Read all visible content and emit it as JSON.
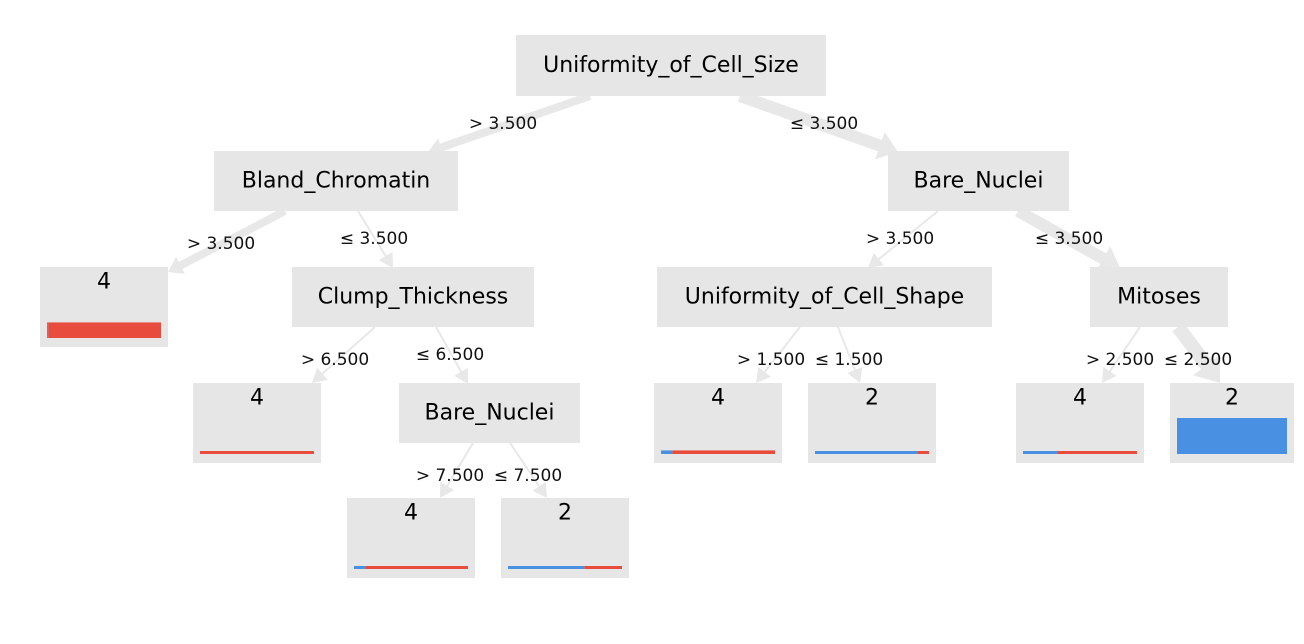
{
  "colors": {
    "class_2": "#4a90e2",
    "class_4": "#e84c3d",
    "node_bg": "#e6e6e6",
    "edge": "#e8e8e8"
  },
  "nodes": {
    "root": {
      "label": "Uniformity_of_Cell_Size"
    },
    "bland": {
      "label": "Bland_Chromatin"
    },
    "bare1": {
      "label": "Bare_Nuclei"
    },
    "clump": {
      "label": "Clump_Thickness"
    },
    "shape": {
      "label": "Uniformity_of_Cell_Shape"
    },
    "mitoses": {
      "label": "Mitoses"
    },
    "bare2": {
      "label": "Bare_Nuclei"
    }
  },
  "leaves": {
    "L1": {
      "label": "4",
      "frac_class_2": 0.01,
      "weight": 0.13
    },
    "L2": {
      "label": "4",
      "frac_class_2": 0.0,
      "weight": 0.02
    },
    "L3": {
      "label": "4",
      "frac_class_2": 0.1,
      "weight": 0.02
    },
    "L4": {
      "label": "2",
      "frac_class_2": 0.67,
      "weight": 0.02
    },
    "L5": {
      "label": "4",
      "frac_class_2": 0.1,
      "weight": 0.03
    },
    "L6": {
      "label": "2",
      "frac_class_2": 0.9,
      "weight": 0.02
    },
    "L7": {
      "label": "4",
      "frac_class_2": 0.3,
      "weight": 0.02
    },
    "L8": {
      "label": "2",
      "frac_class_2": 1.0,
      "weight": 0.3
    }
  },
  "edges": {
    "root_bland": {
      "label": "> 3.500"
    },
    "root_bare1": {
      "label": "≤ 3.500"
    },
    "bland_L1": {
      "label": "> 3.500"
    },
    "bland_clump": {
      "label": "≤ 3.500"
    },
    "clump_L2": {
      "label": "> 6.500"
    },
    "clump_bare2": {
      "label": "≤ 6.500"
    },
    "bare2_L3": {
      "label": "> 7.500"
    },
    "bare2_L4": {
      "label": "≤ 7.500"
    },
    "bare1_shape": {
      "label": "> 3.500"
    },
    "bare1_mitoses": {
      "label": "≤ 3.500"
    },
    "shape_L5": {
      "label": "> 1.500"
    },
    "shape_L6": {
      "label": "≤ 1.500"
    },
    "mitoses_L7": {
      "label": "> 2.500"
    },
    "mitoses_L8": {
      "label": "≤ 2.500"
    }
  }
}
